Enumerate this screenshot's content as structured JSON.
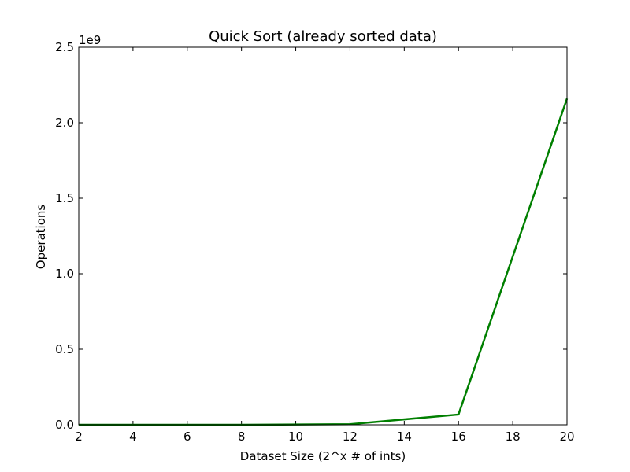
{
  "chart_data": {
    "type": "line",
    "title": "Quick Sort (already sorted data)",
    "xlabel": "Dataset Size (2^x # of ints)",
    "ylabel": "Operations",
    "y_offset_label": "1e9",
    "xlim": [
      2,
      20
    ],
    "ylim": [
      0,
      2.5
    ],
    "x_ticks": [
      2,
      4,
      6,
      8,
      10,
      12,
      14,
      16,
      18,
      20
    ],
    "x_tick_labels": [
      "2",
      "4",
      "6",
      "8",
      "10",
      "12",
      "14",
      "16",
      "18",
      "20"
    ],
    "y_ticks": [
      0,
      0.5,
      1.0,
      1.5,
      2.0,
      2.5
    ],
    "y_tick_labels": [
      "0.0",
      "0.5",
      "1.0",
      "1.5",
      "2.0",
      "2.5"
    ],
    "grid": false,
    "series": [
      {
        "color": "#007f00",
        "x": [
          2,
          4,
          8,
          12,
          16,
          20
        ],
        "y": [
          0.0,
          0.0,
          0.0,
          0.004,
          0.068,
          2.16
        ]
      }
    ]
  }
}
